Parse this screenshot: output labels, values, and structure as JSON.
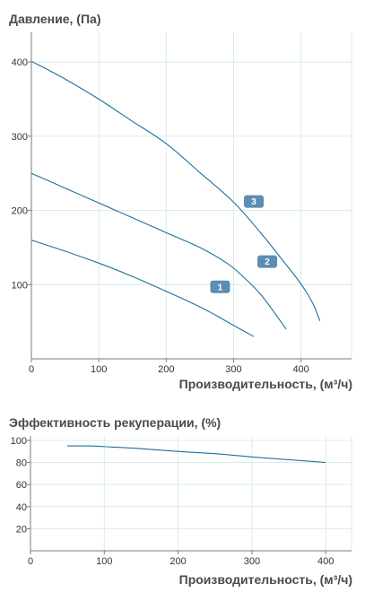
{
  "chart_data": [
    {
      "type": "line",
      "title": "Давление, (Па)",
      "xlabel": "Производительность, (м³/ч)",
      "ylabel": "",
      "xlim": [
        0,
        475
      ],
      "ylim": [
        0,
        440
      ],
      "xticks": [
        0,
        100,
        200,
        300,
        400
      ],
      "yticks": [
        100,
        200,
        300,
        400
      ],
      "x_tick_labels": [
        "0",
        "100",
        "200",
        "300",
        "400"
      ],
      "y_tick_labels": [
        "100",
        "200",
        "300",
        "400"
      ],
      "grid": true,
      "legend": "none",
      "line_color": "#1f6f9c",
      "badge_color": "#5b8db6",
      "series": [
        {
          "name": "1",
          "x": [
            0,
            50,
            100,
            150,
            200,
            250,
            275,
            300,
            330
          ],
          "y": [
            160,
            145,
            129,
            111,
            91,
            70,
            58,
            45,
            30
          ]
        },
        {
          "name": "2",
          "x": [
            0,
            50,
            100,
            150,
            200,
            250,
            290,
            315,
            340,
            360,
            378
          ],
          "y": [
            250,
            230,
            210,
            190,
            170,
            150,
            129,
            110,
            87,
            63,
            40
          ]
        },
        {
          "name": "3",
          "x": [
            0,
            50,
            100,
            150,
            200,
            250,
            300,
            340,
            370,
            395,
            410,
            420,
            428
          ],
          "y": [
            401,
            377,
            350,
            320,
            290,
            251,
            211,
            170,
            136,
            107,
            87,
            70,
            51
          ]
        }
      ],
      "badges": [
        {
          "label": "1",
          "x": 280,
          "y": 97
        },
        {
          "label": "2",
          "x": 350,
          "y": 131
        },
        {
          "label": "3",
          "x": 330,
          "y": 212
        }
      ]
    },
    {
      "type": "line",
      "title": "Эффективность рекуперации, (%)",
      "xlabel": "Производительность, (м³/ч)",
      "ylabel": "",
      "xlim": [
        0,
        435
      ],
      "ylim": [
        0,
        104
      ],
      "xticks": [
        0,
        100,
        200,
        300,
        400
      ],
      "yticks": [
        20,
        40,
        60,
        80,
        100
      ],
      "x_tick_labels": [
        "0",
        "100",
        "200",
        "300",
        "400"
      ],
      "y_tick_labels": [
        "20",
        "40",
        "60",
        "80",
        "100"
      ],
      "grid": true,
      "legend": "none",
      "line_color": "#1f6f9c",
      "series": [
        {
          "name": "",
          "x": [
            50,
            80,
            110,
            150,
            200,
            250,
            300,
            350,
            400
          ],
          "y": [
            95,
            95,
            94,
            92.5,
            90,
            88,
            85,
            82.5,
            80
          ]
        }
      ]
    }
  ]
}
